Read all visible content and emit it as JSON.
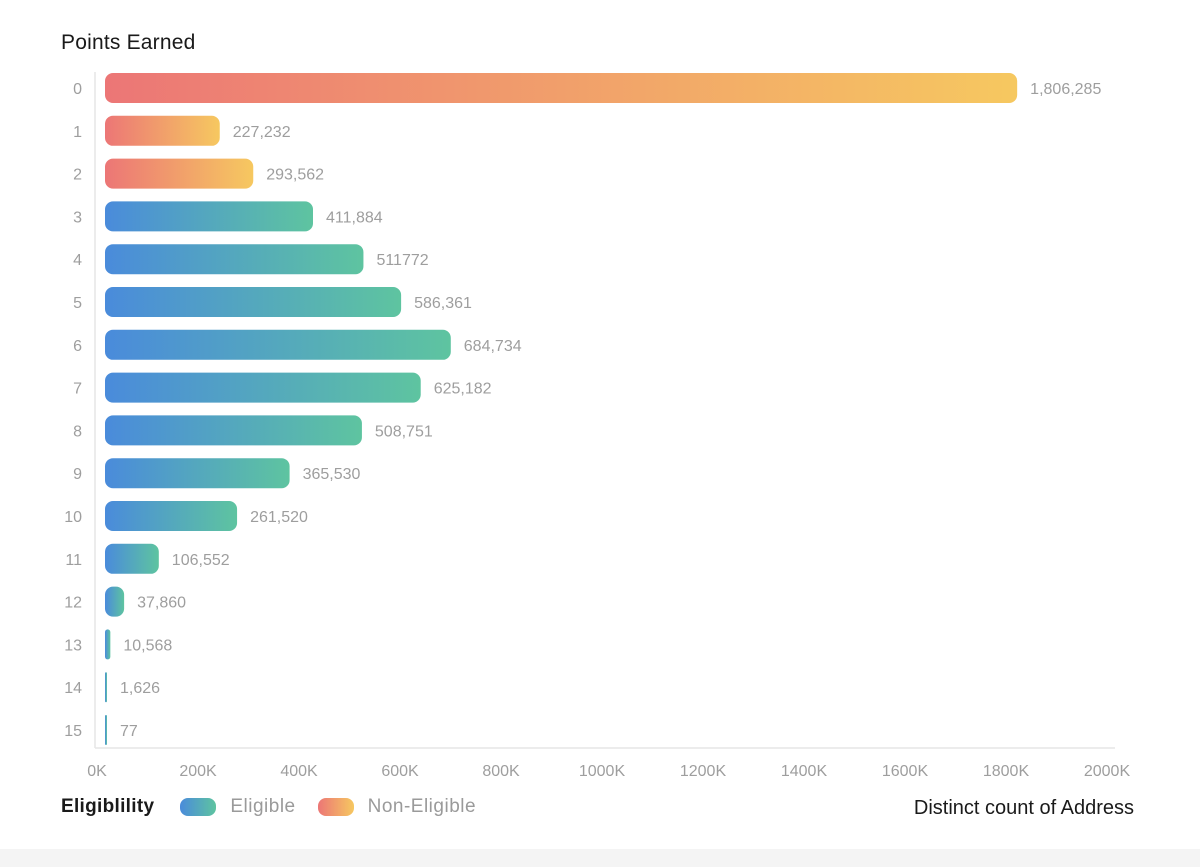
{
  "chart_data": {
    "type": "bar",
    "orientation": "horizontal",
    "title": "Points Earned",
    "xlabel": "Distinct count of Address",
    "ylabel": "Points Earned",
    "xlim": [
      0,
      2000000
    ],
    "x_ticks": [
      {
        "value": 0,
        "label": "0K"
      },
      {
        "value": 200000,
        "label": "200K"
      },
      {
        "value": 400000,
        "label": "400K"
      },
      {
        "value": 600000,
        "label": "600K"
      },
      {
        "value": 800000,
        "label": "800K"
      },
      {
        "value": 1000000,
        "label": "1000K"
      },
      {
        "value": 1200000,
        "label": "1200K"
      },
      {
        "value": 1400000,
        "label": "1400K"
      },
      {
        "value": 1600000,
        "label": "1600K"
      },
      {
        "value": 1800000,
        "label": "1800K"
      },
      {
        "value": 2000000,
        "label": "2000K"
      }
    ],
    "categories": [
      "0",
      "1",
      "2",
      "3",
      "4",
      "5",
      "6",
      "7",
      "8",
      "9",
      "10",
      "11",
      "12",
      "13",
      "14",
      "15"
    ],
    "values": [
      1806285,
      227232,
      293562,
      411884,
      511772,
      586361,
      684734,
      625182,
      508751,
      365530,
      261520,
      106552,
      37860,
      10568,
      1626,
      77
    ],
    "value_labels": [
      "1,806,285",
      "227,232",
      "293,562",
      "411,884",
      "511772",
      "586,361",
      "684,734",
      "625,182",
      "508,751",
      "365,530",
      "261,520",
      "106,552",
      "37,860",
      "10,568",
      "1,626",
      "77"
    ],
    "groups": [
      "Non-Eligible",
      "Non-Eligible",
      "Non-Eligible",
      "Eligible",
      "Eligible",
      "Eligible",
      "Eligible",
      "Eligible",
      "Eligible",
      "Eligible",
      "Eligible",
      "Eligible",
      "Eligible",
      "Eligible",
      "Eligible",
      "Eligible"
    ],
    "legend": {
      "title": "Eligiblility",
      "position": "bottom-left",
      "entries": [
        {
          "name": "Eligible",
          "color_start": "#4a8bdb",
          "color_end": "#5ec4a0"
        },
        {
          "name": "Non-Eligible",
          "color_start": "#ec7676",
          "color_end": "#f6c860"
        }
      ]
    },
    "grid": false
  },
  "colors": {
    "eligible_start": "#4a8bdb",
    "eligible_end": "#5ec4a0",
    "noneligible_start": "#ec7676",
    "noneligible_end": "#f6c860",
    "label_text": "#9e9e9e",
    "axis_line": "#e6e6e6"
  }
}
